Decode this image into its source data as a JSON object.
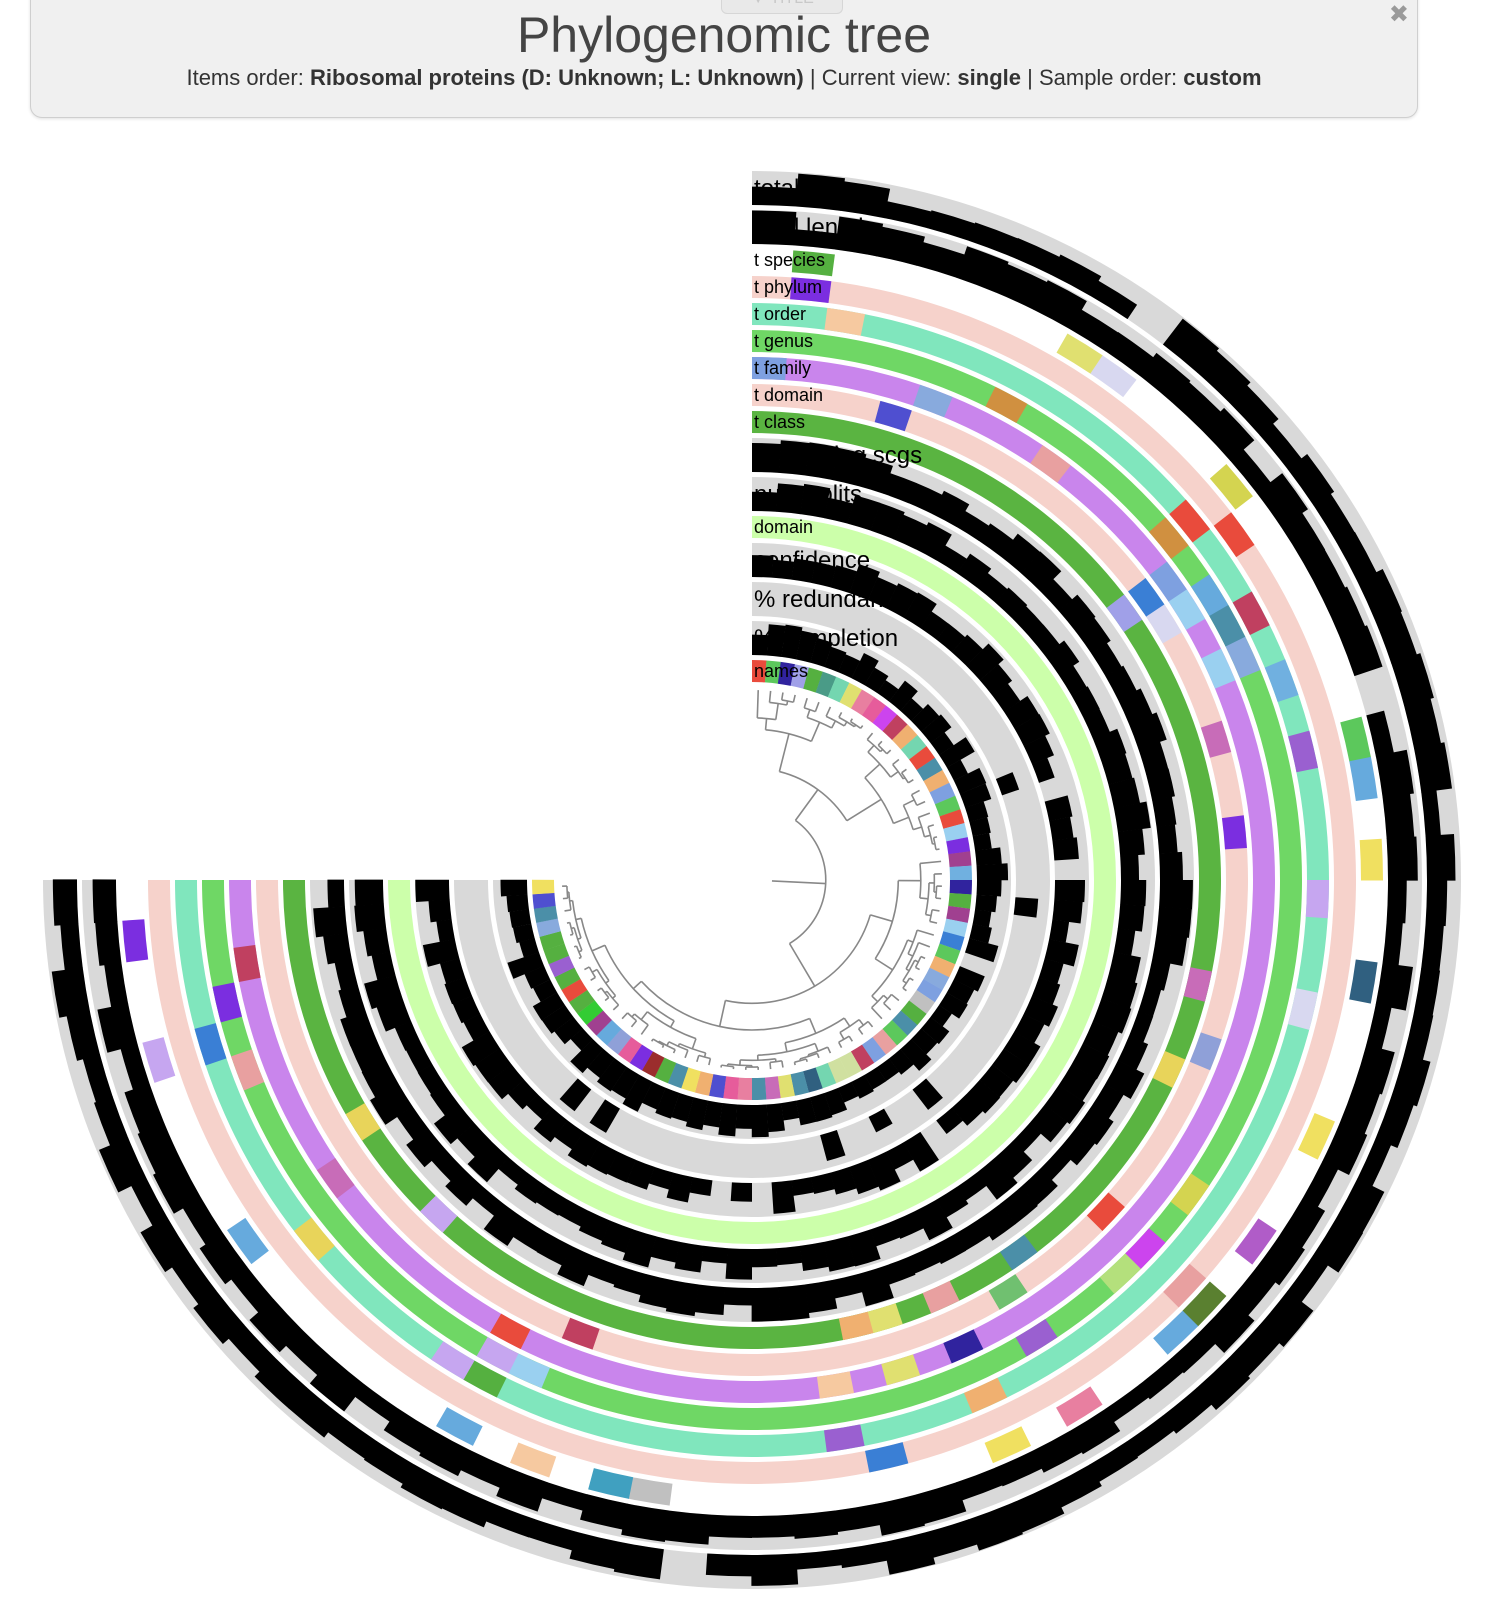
{
  "panel": {
    "tab_label": "▼ TITLE",
    "close_glyph": "✖",
    "title": "Phylogenomic tree",
    "items_order_label": "Items order:",
    "items_order_value": "Ribosomal proteins (D: Unknown; L: Unknown)",
    "sep1": "|",
    "current_view_label": "Current view:",
    "current_view_value": "single",
    "sep2": "|",
    "sample_order_label": "Sample order:",
    "sample_order_value": "custom"
  },
  "diagram": {
    "leaf_count": 72,
    "start_angle_deg": -90,
    "end_angle_deg": 180,
    "layers": [
      {
        "key": "names",
        "label": "names",
        "type": "categorical",
        "size": "small"
      },
      {
        "key": "completion",
        "label": "% completion",
        "type": "bar",
        "size": "large"
      },
      {
        "key": "redundancy",
        "label": "% redundancy",
        "type": "bar",
        "size": "large"
      },
      {
        "key": "confidence",
        "label": "confidence",
        "type": "bar",
        "size": "large"
      },
      {
        "key": "domain",
        "label": "domain",
        "type": "solid",
        "size": "small",
        "color": "#ccffaa"
      },
      {
        "key": "num_splits",
        "label": "num splits",
        "type": "bar",
        "size": "large"
      },
      {
        "key": "supporting_scgs",
        "label": "supporting scgs",
        "type": "bar",
        "size": "large"
      },
      {
        "key": "t_class",
        "label": "t class",
        "type": "categorical",
        "size": "small"
      },
      {
        "key": "t_domain",
        "label": "t domain",
        "type": "categorical",
        "size": "small"
      },
      {
        "key": "t_family",
        "label": "t family",
        "type": "categorical",
        "size": "small"
      },
      {
        "key": "t_genus",
        "label": "t genus",
        "type": "categorical",
        "size": "small"
      },
      {
        "key": "t_order",
        "label": "t order",
        "type": "categorical",
        "size": "small"
      },
      {
        "key": "t_phylum",
        "label": "t phylum",
        "type": "categorical",
        "size": "small"
      },
      {
        "key": "t_species",
        "label": "t species",
        "type": "categorical",
        "size": "small"
      },
      {
        "key": "total_length",
        "label": "total length",
        "type": "bar",
        "size": "large"
      },
      {
        "key": "total_scgs",
        "label": "total scgs",
        "type": "bar",
        "size": "large"
      }
    ],
    "palette": [
      "#e8d45a",
      "#c6a6f0",
      "#7b2ee0",
      "#74d6b0",
      "#9b2d2d",
      "#30239e",
      "#f0e060",
      "#7ea0e0",
      "#9ad0f0",
      "#f6c9a0",
      "#4b8fa8",
      "#a0a0e8",
      "#8ad",
      "#c4e",
      "#3c3",
      "#e8a0a0",
      "#d0e0a0",
      "#7b9fe0",
      "#e65c9b",
      "#3a7fd5",
      "#55b040",
      "#c86cb8",
      "#e94b3c",
      "#4a9b87",
      "#b05cc8",
      "#5cc85c",
      "#d8d8f0",
      "#e87fa0",
      "#b4e07c",
      "#6ad",
      "#f0b070",
      "#8fa0d8",
      "#d4d450",
      "#5a8030",
      "#4f4fd0",
      "#c04060",
      "#d09040",
      "#40a0c0",
      "#9a60d0",
      "#70c070",
      "#e0e070",
      "#f08cb0",
      "#306080",
      "#a04090",
      "#70b0e0",
      "#c0c0c0"
    ],
    "tax_colors": {
      "t_class": "#5ab441",
      "t_domain": "#f6d2cb",
      "t_family": "#c985ec",
      "t_genus": "#6fd765",
      "t_order": "#80e6bd",
      "t_phylum": "#f6d2cb",
      "t_species": "#ffffff"
    }
  }
}
